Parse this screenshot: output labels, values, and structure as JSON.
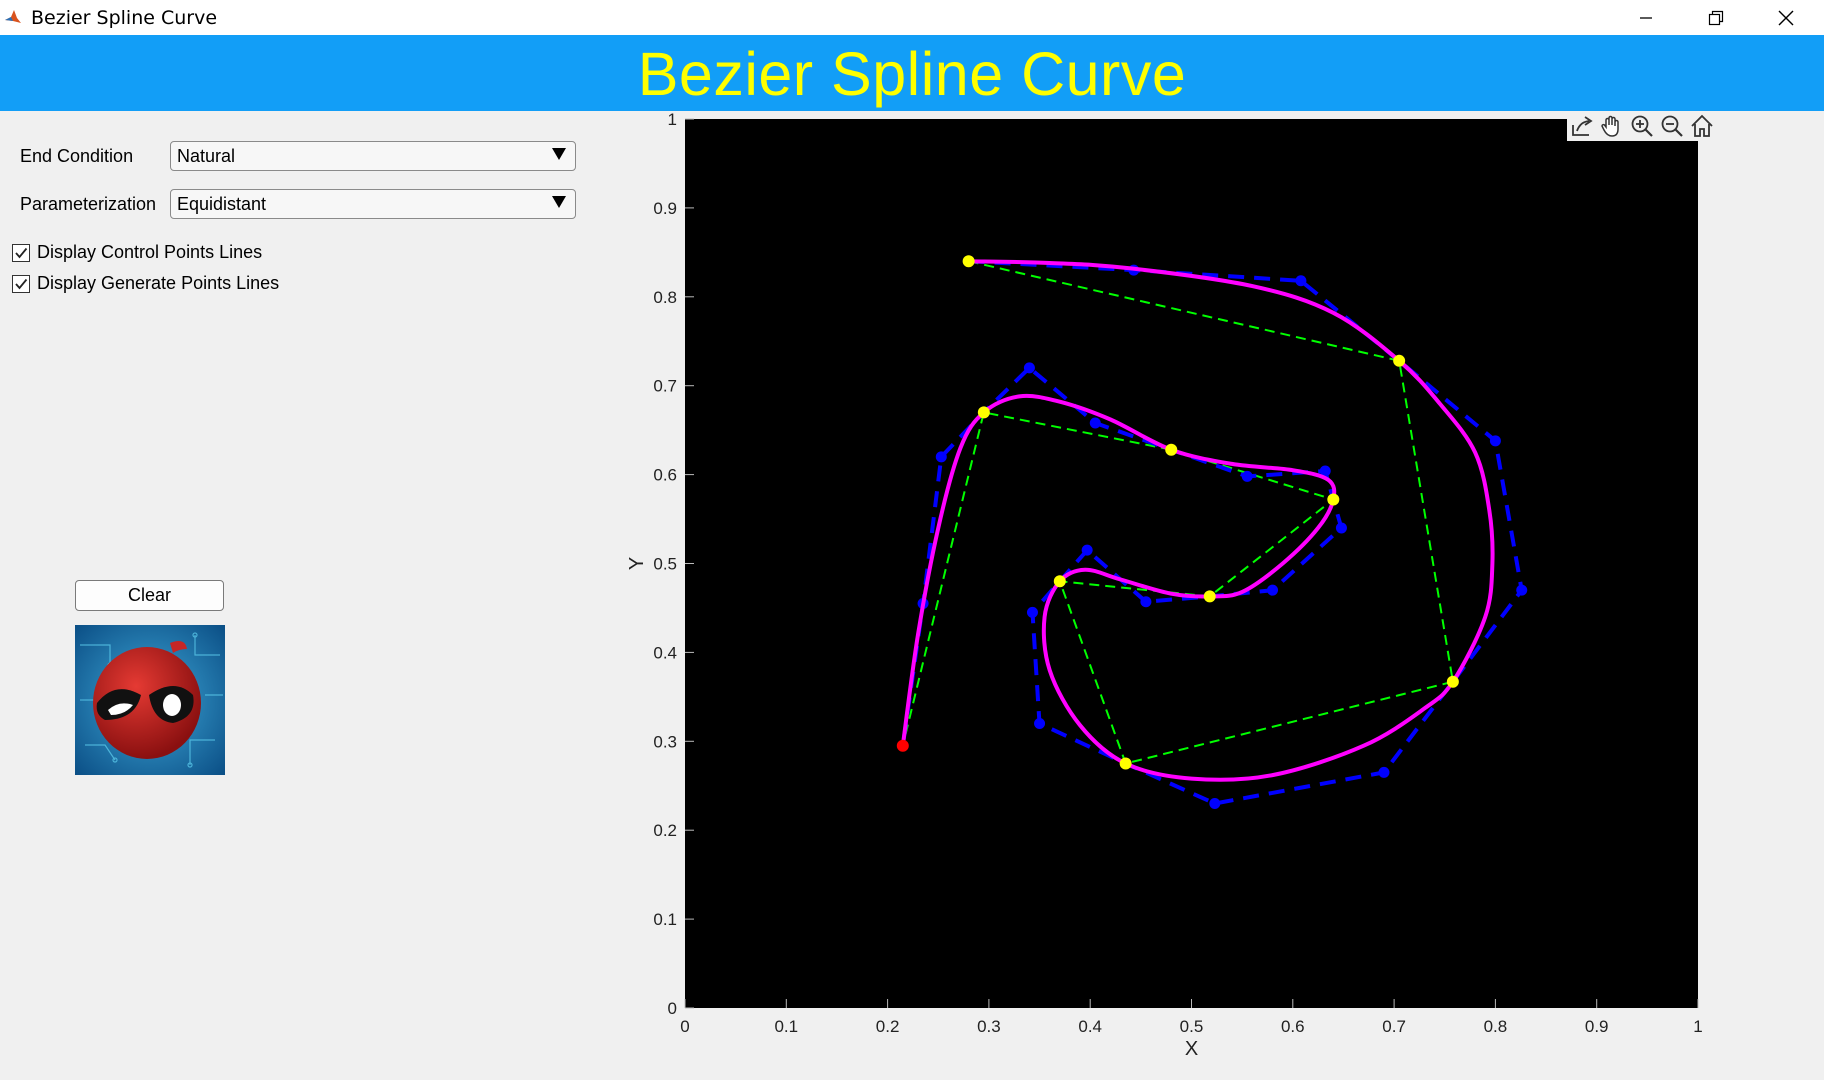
{
  "window": {
    "title": "Bezier Spline Curve"
  },
  "banner": {
    "title": "Bezier Spline Curve"
  },
  "controls": {
    "end_condition": {
      "label": "End Condition",
      "value": "Natural"
    },
    "parameterization": {
      "label": "Parameterization",
      "value": "Equidistant"
    },
    "display_control_lines": {
      "label": "Display Control Points Lines",
      "checked": true
    },
    "display_generate_lines": {
      "label": "Display Generate Points Lines",
      "checked": true
    },
    "clear_label": "Clear"
  },
  "toolbar": {
    "icons": [
      "export-icon",
      "pan-icon",
      "zoom-in-icon",
      "zoom-out-icon",
      "home-icon"
    ]
  },
  "chart_data": {
    "type": "line",
    "xlabel": "X",
    "ylabel": "Y",
    "xlim": [
      0,
      1
    ],
    "ylim": [
      0,
      1
    ],
    "x_ticks": [
      "0",
      "0.1",
      "0.2",
      "0.3",
      "0.4",
      "0.5",
      "0.6",
      "0.7",
      "0.8",
      "0.9",
      "1"
    ],
    "y_ticks": [
      "0",
      "0.1",
      "0.2",
      "0.3",
      "0.4",
      "0.5",
      "0.6",
      "0.7",
      "0.8",
      "0.9",
      "1"
    ],
    "background": "#000000",
    "colors": {
      "curve": "#ff00ff",
      "control": "#0000ff",
      "generate": "#00ff00",
      "knot": "#ffff00",
      "start": "#ff0000"
    },
    "start_point": [
      0.215,
      0.295
    ],
    "knots": [
      [
        0.28,
        0.84
      ],
      [
        0.705,
        0.728
      ],
      [
        0.758,
        0.367
      ],
      [
        0.435,
        0.275
      ],
      [
        0.37,
        0.48
      ],
      [
        0.518,
        0.463
      ],
      [
        0.64,
        0.572
      ],
      [
        0.48,
        0.628
      ],
      [
        0.295,
        0.67
      ],
      [
        0.215,
        0.295
      ]
    ],
    "control_polygon": [
      [
        0.28,
        0.84
      ],
      [
        0.443,
        0.83
      ],
      [
        0.608,
        0.818
      ],
      [
        0.705,
        0.728
      ],
      [
        0.8,
        0.638
      ],
      [
        0.826,
        0.47
      ],
      [
        0.758,
        0.367
      ],
      [
        0.69,
        0.265
      ],
      [
        0.523,
        0.23
      ],
      [
        0.435,
        0.275
      ],
      [
        0.35,
        0.32
      ],
      [
        0.343,
        0.445
      ],
      [
        0.37,
        0.48
      ],
      [
        0.397,
        0.515
      ],
      [
        0.455,
        0.457
      ],
      [
        0.518,
        0.463
      ],
      [
        0.58,
        0.47
      ],
      [
        0.648,
        0.54
      ],
      [
        0.64,
        0.572
      ],
      [
        0.632,
        0.604
      ],
      [
        0.555,
        0.598
      ],
      [
        0.48,
        0.628
      ],
      [
        0.405,
        0.658
      ],
      [
        0.34,
        0.72
      ],
      [
        0.295,
        0.67
      ],
      [
        0.253,
        0.62
      ],
      [
        0.235,
        0.455
      ],
      [
        0.215,
        0.295
      ]
    ],
    "spline_curve": [
      [
        0.215,
        0.295
      ],
      [
        0.23,
        0.42
      ],
      [
        0.25,
        0.54
      ],
      [
        0.272,
        0.63
      ],
      [
        0.295,
        0.67
      ],
      [
        0.33,
        0.688
      ],
      [
        0.37,
        0.682
      ],
      [
        0.42,
        0.662
      ],
      [
        0.48,
        0.628
      ],
      [
        0.54,
        0.612
      ],
      [
        0.6,
        0.605
      ],
      [
        0.635,
        0.594
      ],
      [
        0.64,
        0.572
      ],
      [
        0.625,
        0.54
      ],
      [
        0.59,
        0.5
      ],
      [
        0.55,
        0.468
      ],
      [
        0.518,
        0.463
      ],
      [
        0.48,
        0.466
      ],
      [
        0.43,
        0.482
      ],
      [
        0.395,
        0.493
      ],
      [
        0.37,
        0.48
      ],
      [
        0.355,
        0.44
      ],
      [
        0.36,
        0.38
      ],
      [
        0.39,
        0.318
      ],
      [
        0.435,
        0.275
      ],
      [
        0.5,
        0.258
      ],
      [
        0.58,
        0.262
      ],
      [
        0.67,
        0.295
      ],
      [
        0.73,
        0.337
      ],
      [
        0.758,
        0.367
      ],
      [
        0.79,
        0.44
      ],
      [
        0.797,
        0.5
      ],
      [
        0.794,
        0.56
      ],
      [
        0.78,
        0.625
      ],
      [
        0.745,
        0.68
      ],
      [
        0.705,
        0.728
      ],
      [
        0.64,
        0.782
      ],
      [
        0.56,
        0.812
      ],
      [
        0.44,
        0.832
      ],
      [
        0.36,
        0.838
      ],
      [
        0.28,
        0.84
      ]
    ]
  }
}
